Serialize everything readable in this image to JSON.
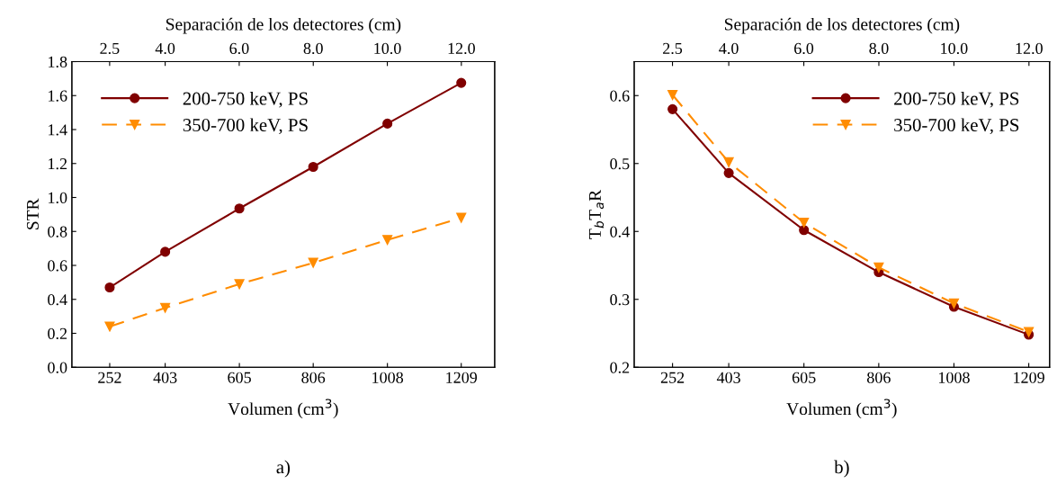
{
  "chart_data": [
    {
      "type": "line",
      "xlabel": "Volumen (cm$^{3}$)",
      "ylabel": "STR",
      "x2label": "Separación de los detectores (cm)",
      "x": [
        252,
        403,
        605,
        806,
        1008,
        1209
      ],
      "series": [
        {
          "name": "200-750 keV, PS",
          "color": "#800000",
          "marker": "circle",
          "line_style": "solid",
          "values": [
            0.47,
            0.68,
            0.935,
            1.18,
            1.435,
            1.675
          ]
        },
        {
          "name": "350-700 keV, PS",
          "color": "#ff8c00",
          "marker": "triangle",
          "line_style": "dashed",
          "values": [
            0.24,
            0.35,
            0.49,
            0.615,
            0.75,
            0.88
          ]
        }
      ],
      "xlim": [
        149,
        1300
      ],
      "xticks": [
        252,
        403,
        605,
        806,
        1008,
        1209
      ],
      "x2lim": [
        1.48,
        12.9
      ],
      "x2ticks": [
        {
          "value": 2.5,
          "label": "2.5"
        },
        {
          "value": 4,
          "label": "4.0"
        },
        {
          "value": 6,
          "label": "6.0"
        },
        {
          "value": 8,
          "label": "8.0"
        },
        {
          "value": 10,
          "label": "10.0"
        },
        {
          "value": 12,
          "label": "12.0"
        }
      ],
      "ylim": [
        0,
        1.8
      ],
      "yticks": [
        {
          "value": 0,
          "label": "0.0"
        },
        {
          "value": 0.2,
          "label": "0.2"
        },
        {
          "value": 0.4,
          "label": "0.4"
        },
        {
          "value": 0.6,
          "label": "0.6"
        },
        {
          "value": 0.8,
          "label": "0.8"
        },
        {
          "value": 1.0,
          "label": "1.0"
        },
        {
          "value": 1.2,
          "label": "1.2"
        },
        {
          "value": 1.4,
          "label": "1.4"
        },
        {
          "value": 1.6,
          "label": "1.6"
        },
        {
          "value": 1.8,
          "label": "1.8"
        }
      ],
      "grid": false,
      "legend": "top left",
      "annotations": [
        "a)"
      ]
    },
    {
      "type": "line",
      "xlabel": "Volumen (cm$^{3}$)",
      "ylabel": "T$_{b}$T$_{a}$R",
      "x2label": "Separación de los detectores (cm)",
      "x": [
        252,
        403,
        605,
        806,
        1008,
        1209
      ],
      "series": [
        {
          "name": "200-750 keV, PS",
          "color": "#800000",
          "marker": "circle",
          "line_style": "solid",
          "values": [
            0.58,
            0.486,
            0.402,
            0.34,
            0.289,
            0.248
          ]
        },
        {
          "name": "350-700 keV, PS",
          "color": "#ff8c00",
          "marker": "triangle",
          "line_style": "dashed",
          "values": [
            0.601,
            0.502,
            0.413,
            0.347,
            0.294,
            0.252
          ]
        }
      ],
      "xlim": [
        149,
        1265
      ],
      "xticks": [
        252,
        403,
        605,
        806,
        1008,
        1209
      ],
      "x2lim": [
        1.48,
        12.55
      ],
      "x2ticks": [
        {
          "value": 2.5,
          "label": "2.5"
        },
        {
          "value": 4,
          "label": "4.0"
        },
        {
          "value": 6,
          "label": "6.0"
        },
        {
          "value": 8,
          "label": "8.0"
        },
        {
          "value": 10,
          "label": "10.0"
        },
        {
          "value": 12,
          "label": "12.0"
        }
      ],
      "ylim": [
        0.2,
        0.65
      ],
      "yticks": [
        0.2,
        0.3,
        0.4,
        0.5,
        0.6
      ],
      "grid": false,
      "legend": "top right",
      "annotations": [
        "b)"
      ]
    }
  ]
}
